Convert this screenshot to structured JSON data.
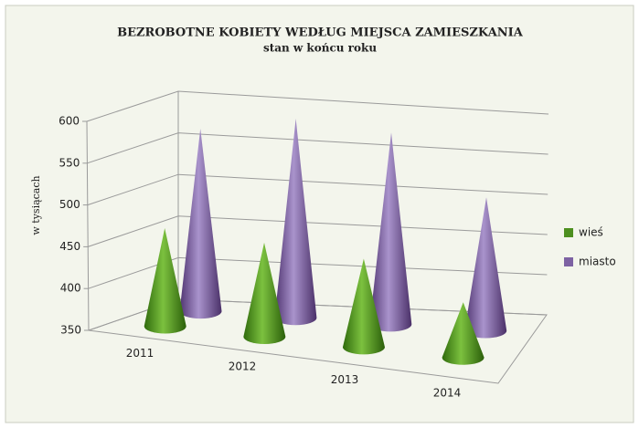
{
  "chart_data": {
    "type": "cone3d",
    "title": "BEZROBOTNE  KOBIETY  WEDŁUG MIEJSCA ZAMIESZKANIA",
    "subtitle": "stan w końcu roku",
    "y_label": "w tysiącach",
    "categories": [
      "2011",
      "2012",
      "2013",
      "2014"
    ],
    "series": [
      {
        "name": "wieś",
        "color": "#4d8f1f",
        "values": [
          468,
          464,
          458,
          418
        ]
      },
      {
        "name": "miasto",
        "color": "#7d62a3",
        "values": [
          570,
          592,
          585,
          515
        ]
      }
    ],
    "ylim": [
      350,
      600
    ],
    "yticks": [
      350,
      400,
      450,
      500,
      550,
      600
    ],
    "grid": true,
    "legend": "right"
  }
}
